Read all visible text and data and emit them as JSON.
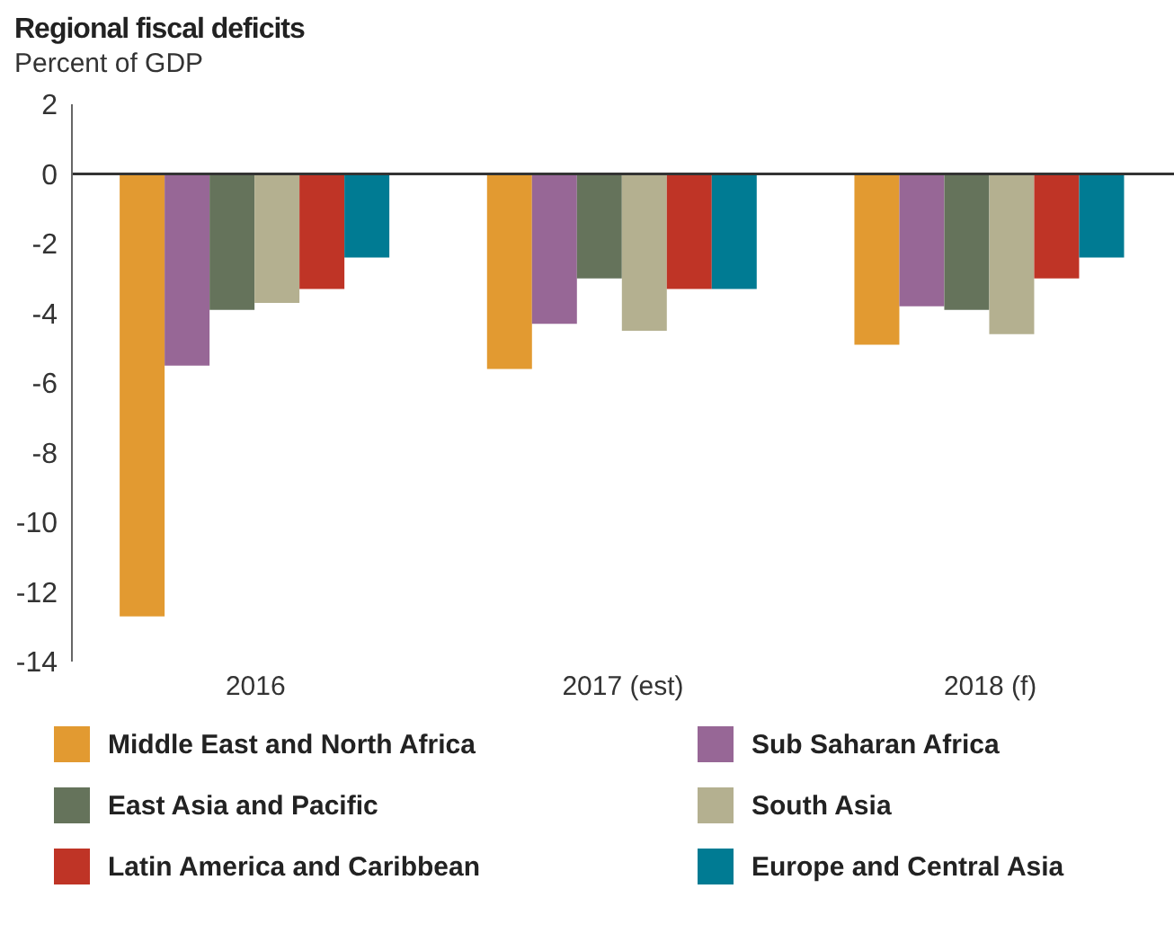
{
  "chart_data": {
    "type": "bar",
    "title": "Regional fiscal deficits",
    "subtitle": "Percent of GDP",
    "categories": [
      "2016",
      "2017 (est)",
      "2018 (f)"
    ],
    "series": [
      {
        "name": "Middle East and North Africa",
        "color": "#e29a31",
        "values": [
          -12.7,
          -5.6,
          -4.9
        ]
      },
      {
        "name": "Sub Saharan Africa",
        "color": "#976796",
        "values": [
          -5.5,
          -4.3,
          -3.8
        ]
      },
      {
        "name": "East Asia and Pacific",
        "color": "#65735b",
        "values": [
          -3.9,
          -3.0,
          -3.9
        ]
      },
      {
        "name": "South Asia",
        "color": "#b4b090",
        "values": [
          -3.7,
          -4.5,
          -4.6
        ]
      },
      {
        "name": "Latin America and Caribbean",
        "color": "#bf3426",
        "values": [
          -3.3,
          -3.3,
          -3.0
        ]
      },
      {
        "name": "Europe and Central Asia",
        "color": "#007b93",
        "values": [
          -2.4,
          -3.3,
          -2.4
        ]
      }
    ],
    "ylim": [
      -14,
      2
    ],
    "yticks": [
      -14,
      -12,
      -10,
      -8,
      -6,
      -4,
      -2,
      0,
      2
    ],
    "ref_lines": [
      {
        "axis": "y",
        "value": 0,
        "color": "#333333"
      }
    ],
    "grid": false,
    "legend": "bottom"
  }
}
